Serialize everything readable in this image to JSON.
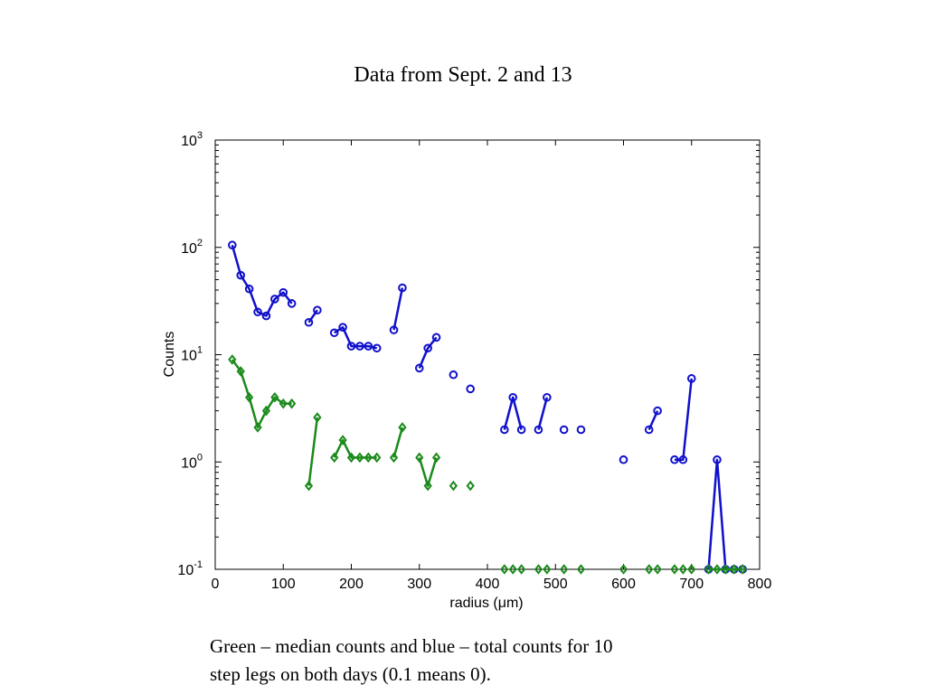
{
  "slide": {
    "title": "Data from Sept. 2 and 13",
    "caption_lines": [
      "Green – median counts and blue – total counts for 10",
      "step legs on both days (0.1 means 0)."
    ]
  },
  "chart_data": {
    "type": "line",
    "title": "",
    "xlabel": "radius (μm)",
    "ylabel": "Counts",
    "xlim": [
      0,
      800
    ],
    "ylim": [
      0.1,
      1000
    ],
    "yscale": "log",
    "xticks": [
      0,
      100,
      200,
      300,
      400,
      500,
      600,
      700,
      800
    ],
    "yticks": [
      {
        "value": 0.1,
        "base": "10",
        "exp": "-1"
      },
      {
        "value": 1,
        "base": "10",
        "exp": "0"
      },
      {
        "value": 10,
        "base": "10",
        "exp": "1"
      },
      {
        "value": 100,
        "base": "10",
        "exp": "2"
      },
      {
        "value": 1000,
        "base": "10",
        "exp": "3"
      }
    ],
    "grid": false,
    "legend": "none",
    "series": [
      {
        "color": "#1010cc",
        "marker": "circle",
        "points": [
          [
            25,
            105
          ],
          [
            37.5,
            55
          ],
          [
            50,
            41
          ],
          [
            62.5,
            25
          ],
          [
            75,
            23
          ],
          [
            87.5,
            33
          ],
          [
            100,
            38
          ],
          [
            112.5,
            30
          ],
          [
            137.5,
            20
          ],
          [
            150,
            26
          ],
          [
            175,
            16
          ],
          [
            187.5,
            18
          ],
          [
            200,
            12
          ],
          [
            212.5,
            12
          ],
          [
            225,
            12
          ],
          [
            237.5,
            11.5
          ],
          [
            262.5,
            17
          ],
          [
            275,
            42
          ],
          [
            300,
            7.5
          ],
          [
            312.5,
            11.5
          ],
          [
            325,
            14.5
          ],
          [
            350,
            6.5
          ],
          [
            375,
            4.8
          ],
          [
            425,
            2
          ],
          [
            437.5,
            4
          ],
          [
            450,
            2
          ],
          [
            475,
            2
          ],
          [
            487.5,
            4
          ],
          [
            512.5,
            2
          ],
          [
            537.5,
            2
          ],
          [
            600,
            1.05
          ],
          [
            637.5,
            2
          ],
          [
            650,
            3
          ],
          [
            675,
            1.05
          ],
          [
            687.5,
            1.05
          ],
          [
            700,
            6
          ],
          [
            725,
            0.1
          ],
          [
            737.5,
            1.05
          ],
          [
            750,
            0.1
          ],
          [
            762.5,
            0.1
          ],
          [
            775,
            0.1
          ]
        ],
        "segments": [
          [
            0,
            7
          ],
          [
            8,
            9
          ],
          [
            10,
            15
          ],
          [
            16,
            17
          ],
          [
            18,
            20
          ],
          [
            21,
            21
          ],
          [
            22,
            22
          ],
          [
            23,
            25
          ],
          [
            26,
            27
          ],
          [
            28,
            28
          ],
          [
            29,
            29
          ],
          [
            30,
            30
          ],
          [
            31,
            32
          ],
          [
            33,
            35
          ],
          [
            36,
            40
          ]
        ]
      },
      {
        "color": "#1a8a1a",
        "marker": "diamond",
        "points": [
          [
            25,
            9
          ],
          [
            37.5,
            7
          ],
          [
            50,
            4
          ],
          [
            62.5,
            2.1
          ],
          [
            75,
            3
          ],
          [
            87.5,
            4
          ],
          [
            100,
            3.5
          ],
          [
            112.5,
            3.5
          ],
          [
            137.5,
            0.6
          ],
          [
            150,
            2.6
          ],
          [
            175,
            1.1
          ],
          [
            187.5,
            1.6
          ],
          [
            200,
            1.1
          ],
          [
            212.5,
            1.1
          ],
          [
            225,
            1.1
          ],
          [
            237.5,
            1.1
          ],
          [
            262.5,
            1.1
          ],
          [
            275,
            2.1
          ],
          [
            300,
            1.1
          ],
          [
            312.5,
            0.6
          ],
          [
            325,
            1.1
          ],
          [
            350,
            0.6
          ],
          [
            375,
            0.6
          ],
          [
            425,
            0.1
          ],
          [
            437.5,
            0.1
          ],
          [
            450,
            0.1
          ],
          [
            475,
            0.1
          ],
          [
            487.5,
            0.1
          ],
          [
            512.5,
            0.1
          ],
          [
            537.5,
            0.1
          ],
          [
            600,
            0.1
          ],
          [
            637.5,
            0.1
          ],
          [
            650,
            0.1
          ],
          [
            675,
            0.1
          ],
          [
            687.5,
            0.1
          ],
          [
            700,
            0.1
          ],
          [
            725,
            0.1
          ],
          [
            737.5,
            0.1
          ],
          [
            750,
            0.1
          ],
          [
            762.5,
            0.1
          ],
          [
            775,
            0.1
          ]
        ],
        "segments": [
          [
            0,
            7
          ],
          [
            8,
            9
          ],
          [
            10,
            15
          ],
          [
            16,
            17
          ],
          [
            18,
            20
          ],
          [
            21,
            21
          ],
          [
            22,
            22
          ],
          [
            23,
            23
          ],
          [
            24,
            24
          ],
          [
            25,
            25
          ],
          [
            26,
            26
          ],
          [
            27,
            27
          ],
          [
            28,
            28
          ],
          [
            29,
            29
          ],
          [
            30,
            30
          ],
          [
            31,
            31
          ],
          [
            32,
            32
          ],
          [
            33,
            33
          ],
          [
            34,
            34
          ],
          [
            35,
            35
          ],
          [
            36,
            40
          ]
        ]
      }
    ]
  }
}
